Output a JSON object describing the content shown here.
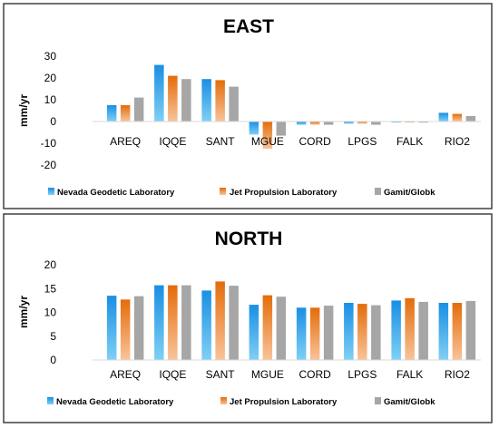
{
  "colors": {
    "nevada_top": "#1a8fe3",
    "nevada_bottom": "#7fd0f5",
    "jpl_top": "#e46c0a",
    "jpl_bottom": "#f8c49a",
    "gamit": "#a6a6a6",
    "frame": "#404040"
  },
  "chart_data": [
    {
      "type": "bar",
      "title": "EAST",
      "ylabel": "mm/yr",
      "ylim": [
        -20,
        30
      ],
      "yticks": [
        30,
        20,
        10,
        0,
        -10,
        -20
      ],
      "grid": false,
      "legend_position": "bottom",
      "categories": [
        "AREQ",
        "IQQE",
        "SANT",
        "MGUE",
        "CORD",
        "LPGS",
        "FALK",
        "RIO2"
      ],
      "series": [
        {
          "name": "Nevada Geodetic Laboratory",
          "values": [
            7.5,
            26,
            19.5,
            -6,
            -1.5,
            -1,
            -0.5,
            4
          ]
        },
        {
          "name": "Jet Propulsion Laboratory",
          "values": [
            7.5,
            21,
            19,
            -12.5,
            -1.5,
            -1,
            -0.5,
            3.5
          ]
        },
        {
          "name": "Gamit/Globk",
          "values": [
            11,
            19.5,
            16,
            -6.5,
            -1.5,
            -1.5,
            -0.5,
            2.5
          ]
        }
      ]
    },
    {
      "type": "bar",
      "title": "NORTH",
      "ylabel": "mm/yr",
      "ylim": [
        0,
        20
      ],
      "yticks": [
        20,
        15,
        10,
        5,
        0
      ],
      "grid": false,
      "legend_position": "bottom",
      "categories": [
        "AREQ",
        "IQQE",
        "SANT",
        "MGUE",
        "CORD",
        "LPGS",
        "FALK",
        "RIO2"
      ],
      "series": [
        {
          "name": "Nevada Geodetic Laboratory",
          "values": [
            13.5,
            15.7,
            14.6,
            11.6,
            11,
            12,
            12.5,
            12
          ]
        },
        {
          "name": "Jet Propulsion Laboratory",
          "values": [
            12.7,
            15.7,
            16.5,
            13.6,
            11,
            11.8,
            13,
            12
          ]
        },
        {
          "name": "Gamit/Globk",
          "values": [
            13.4,
            15.7,
            15.6,
            13.3,
            11.4,
            11.5,
            12.2,
            12.4
          ]
        }
      ]
    }
  ]
}
